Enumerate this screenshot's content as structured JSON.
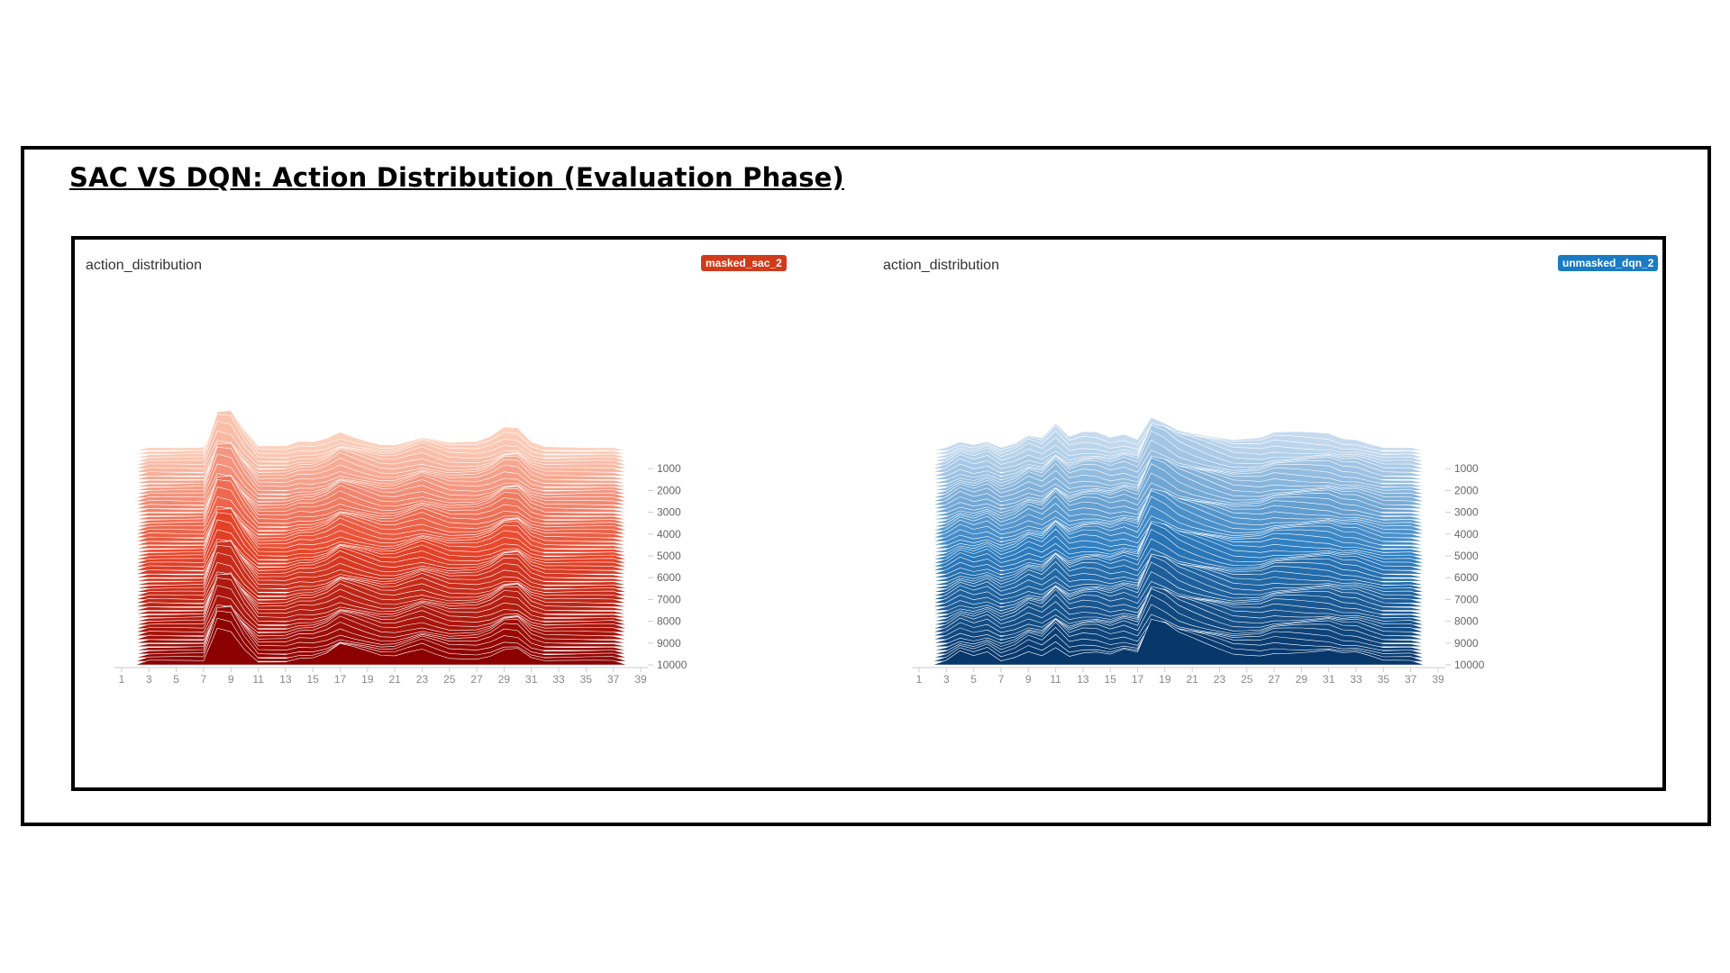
{
  "slide": {
    "title": "SAC VS DQN: Action Distribution (Evaluation Phase)"
  },
  "colors": {
    "sac_light": "#fdd0bc",
    "sac_mid": "#e8452a",
    "sac_dark": "#8b0000",
    "dqn_light": "#c6dbef",
    "dqn_mid": "#2f7fc1",
    "dqn_dark": "#07376b",
    "sac_badge": "#d13b1b",
    "dqn_badge": "#1a7bc4"
  },
  "chart_data": [
    {
      "type": "area",
      "title": "action_distribution",
      "run": "masked_sac_2",
      "x_ticks": [
        "1",
        "3",
        "5",
        "7",
        "9",
        "11",
        "13",
        "15",
        "17",
        "19",
        "21",
        "23",
        "25",
        "27",
        "29",
        "31",
        "33",
        "35",
        "37",
        "39"
      ],
      "y_ticks": [
        "1000",
        "2000",
        "3000",
        "4000",
        "5000",
        "6000",
        "7000",
        "8000",
        "9000",
        "10000"
      ],
      "xlim": [
        1,
        39
      ],
      "ylim": [
        0,
        10000
      ],
      "grid": false,
      "series": [
        {
          "step": 0,
          "x": [
            1,
            2,
            3,
            4,
            5,
            6,
            7,
            8,
            9,
            10,
            11,
            12,
            13,
            14,
            15,
            16,
            17,
            18,
            19,
            20,
            21,
            22,
            23,
            24,
            25,
            26,
            27,
            28,
            29,
            30,
            31,
            32,
            33,
            34,
            35,
            36,
            37,
            38,
            39
          ],
          "values": [
            0,
            0,
            0.1,
            0.1,
            0.1,
            0.1,
            0.1,
            1,
            1,
            0.5,
            0.1,
            0.1,
            0.1,
            0.2,
            0.2,
            0.3,
            0.5,
            0.4,
            0.3,
            0.2,
            0.2,
            0.3,
            0.4,
            0.3,
            0.2,
            0.2,
            0.2,
            0.3,
            0.5,
            0.5,
            0.2,
            0.1,
            0.1,
            0.1,
            0.1,
            0.1,
            0.1,
            0,
            0
          ]
        },
        {
          "step": 1,
          "x": [
            1,
            2,
            3,
            4,
            5,
            6,
            7,
            8,
            9,
            10,
            11,
            12,
            13,
            14,
            15,
            16,
            17,
            18,
            19,
            20,
            21,
            22,
            23,
            24,
            25,
            26,
            27,
            28,
            29,
            30,
            31,
            32,
            33,
            34,
            35,
            36,
            37,
            38,
            39
          ],
          "values": [
            0,
            0,
            0.1,
            0.1,
            0.1,
            0.1,
            0.1,
            1,
            1,
            0.5,
            0.1,
            0.1,
            0.1,
            0.2,
            0.2,
            0.3,
            0.5,
            0.4,
            0.3,
            0.2,
            0.2,
            0.3,
            0.4,
            0.3,
            0.2,
            0.2,
            0.2,
            0.3,
            0.5,
            0.5,
            0.2,
            0.1,
            0.1,
            0.1,
            0.1,
            0.1,
            0.1,
            0,
            0
          ]
        },
        {
          "step": 2,
          "x": [
            1,
            2,
            3,
            4,
            5,
            6,
            7,
            8,
            9,
            10,
            11,
            12,
            13,
            14,
            15,
            16,
            17,
            18,
            19,
            20,
            21,
            22,
            23,
            24,
            25,
            26,
            27,
            28,
            29,
            30,
            31,
            32,
            33,
            34,
            35,
            36,
            37,
            38,
            39
          ],
          "values": [
            0,
            0,
            0.1,
            0.1,
            0.1,
            0.1,
            0.1,
            1,
            1,
            0.5,
            0.1,
            0.1,
            0.1,
            0.2,
            0.2,
            0.3,
            0.5,
            0.4,
            0.3,
            0.2,
            0.2,
            0.3,
            0.4,
            0.3,
            0.2,
            0.2,
            0.2,
            0.3,
            0.5,
            0.5,
            0.2,
            0.1,
            0.1,
            0.1,
            0.1,
            0.1,
            0.1,
            0,
            0
          ]
        }
      ]
    },
    {
      "type": "area",
      "title": "action_distribution",
      "run": "unmasked_dqn_2",
      "x_ticks": [
        "1",
        "3",
        "5",
        "7",
        "9",
        "11",
        "13",
        "15",
        "17",
        "19",
        "21",
        "23",
        "25",
        "27",
        "29",
        "31",
        "33",
        "35",
        "37",
        "39"
      ],
      "y_ticks": [
        "1000",
        "2000",
        "3000",
        "4000",
        "5000",
        "6000",
        "7000",
        "8000",
        "9000",
        "10000"
      ],
      "xlim": [
        1,
        39
      ],
      "ylim": [
        0,
        10000
      ],
      "grid": false,
      "series": [
        {
          "step": 0,
          "x": [
            1,
            2,
            3,
            4,
            5,
            6,
            7,
            8,
            9,
            10,
            11,
            12,
            13,
            14,
            15,
            16,
            17,
            18,
            19,
            20,
            21,
            22,
            23,
            24,
            25,
            26,
            27,
            28,
            29,
            30,
            31,
            32,
            33,
            34,
            35,
            36,
            37,
            38,
            39
          ],
          "values": [
            0,
            0,
            0.1,
            0.3,
            0.2,
            0.3,
            0.1,
            0.2,
            0.4,
            0.3,
            0.6,
            0.3,
            0.4,
            0.4,
            0.3,
            0.4,
            0.3,
            1,
            0.9,
            0.7,
            0.6,
            0.5,
            0.4,
            0.3,
            0.3,
            0.3,
            0.4,
            0.4,
            0.4,
            0.4,
            0.4,
            0.3,
            0.3,
            0.2,
            0.1,
            0.1,
            0.1,
            0,
            0
          ]
        },
        {
          "step": 1,
          "x": [
            1,
            2,
            3,
            4,
            5,
            6,
            7,
            8,
            9,
            10,
            11,
            12,
            13,
            14,
            15,
            16,
            17,
            18,
            19,
            20,
            21,
            22,
            23,
            24,
            25,
            26,
            27,
            28,
            29,
            30,
            31,
            32,
            33,
            34,
            35,
            36,
            37,
            38,
            39
          ],
          "values": [
            0,
            0,
            0.1,
            0.3,
            0.2,
            0.3,
            0.1,
            0.2,
            0.4,
            0.3,
            0.6,
            0.3,
            0.4,
            0.4,
            0.3,
            0.4,
            0.3,
            1,
            0.9,
            0.7,
            0.6,
            0.5,
            0.4,
            0.3,
            0.3,
            0.3,
            0.4,
            0.4,
            0.4,
            0.4,
            0.4,
            0.3,
            0.3,
            0.2,
            0.1,
            0.1,
            0.1,
            0,
            0
          ]
        },
        {
          "step": 2,
          "x": [
            1,
            2,
            3,
            4,
            5,
            6,
            7,
            8,
            9,
            10,
            11,
            12,
            13,
            14,
            15,
            16,
            17,
            18,
            19,
            20,
            21,
            22,
            23,
            24,
            25,
            26,
            27,
            28,
            29,
            30,
            31,
            32,
            33,
            34,
            35,
            36,
            37,
            38,
            39
          ],
          "values": [
            0,
            0,
            0.1,
            0.3,
            0.2,
            0.3,
            0.1,
            0.2,
            0.4,
            0.3,
            0.6,
            0.3,
            0.4,
            0.4,
            0.3,
            0.4,
            0.3,
            1,
            0.9,
            0.7,
            0.6,
            0.5,
            0.4,
            0.3,
            0.3,
            0.3,
            0.4,
            0.4,
            0.4,
            0.4,
            0.4,
            0.3,
            0.3,
            0.2,
            0.1,
            0.1,
            0.1,
            0,
            0
          ]
        }
      ]
    }
  ]
}
